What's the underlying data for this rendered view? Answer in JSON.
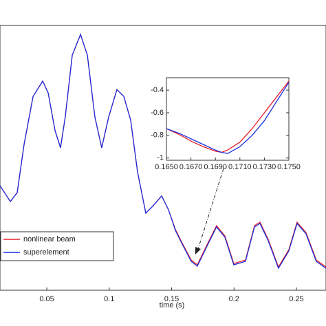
{
  "chart_data": [
    {
      "type": "line",
      "xlabel": "time (s)",
      "legend": "lower left",
      "xlim": [
        0.0125,
        0.2737
      ],
      "ylim": [
        0,
        100
      ],
      "xticks": [
        0.05,
        0.1,
        0.15,
        0.2,
        0.25
      ],
      "x": [
        0.0125,
        0.0208,
        0.0263,
        0.0318,
        0.039,
        0.0467,
        0.0511,
        0.0566,
        0.061,
        0.0648,
        0.0704,
        0.077,
        0.0825,
        0.0885,
        0.094,
        0.0996,
        0.1062,
        0.1117,
        0.1172,
        0.1227,
        0.1293,
        0.1348,
        0.142,
        0.1475,
        0.153,
        0.1585,
        0.1657,
        0.1706,
        0.1778,
        0.186,
        0.1927,
        0.1998,
        0.2092,
        0.2164,
        0.2208,
        0.2274,
        0.2356,
        0.2439,
        0.2505,
        0.2577,
        0.2659,
        0.2737
      ],
      "series": [
        {
          "name": "nonlinear beam",
          "color": "#e8202a",
          "values": [
            39.5,
            33.5,
            36.9,
            55.1,
            73.2,
            79,
            74.5,
            60.3,
            53.8,
            65.5,
            88.8,
            96.6,
            88.8,
            65.5,
            53.8,
            65.5,
            75.8,
            73.2,
            64.2,
            44.7,
            29.1,
            31.7,
            35.6,
            30.4,
            23.0,
            17.8,
            11.4,
            9.6,
            16.6,
            24.4,
            20.5,
            10.1,
            11.4,
            24.4,
            25.7,
            19.2,
            8.8,
            15.3,
            25.7,
            21.8,
            11.4,
            8.8
          ]
        },
        {
          "name": "superelement",
          "color": "#1a2ee0",
          "values": [
            39.5,
            33.5,
            36.9,
            55.1,
            73.2,
            79,
            74.5,
            60.3,
            53.8,
            65.5,
            88.8,
            96.6,
            88.8,
            65.5,
            53.8,
            65.5,
            75.8,
            73.2,
            64.2,
            44.7,
            29.1,
            31.7,
            35.6,
            30.4,
            22.6,
            17.4,
            10.9,
            9.1,
            16.1,
            23.9,
            20,
            9.6,
            10.9,
            23.9,
            25.2,
            18.7,
            8.3,
            14.8,
            25.2,
            21.3,
            10.9,
            8.3
          ]
        }
      ]
    },
    {
      "type": "line",
      "xlim": [
        0.165,
        0.175
      ],
      "ylim": [
        -1.02,
        -0.29
      ],
      "xticks": [
        {
          "value": 0.165,
          "label": "0.1650"
        },
        {
          "value": 0.167,
          "label": "0.1670"
        },
        {
          "value": 0.169,
          "label": "0.1690"
        },
        {
          "value": 0.171,
          "label": "0.1710"
        },
        {
          "value": 0.173,
          "label": "0.1730"
        },
        {
          "value": 0.175,
          "label": "0.1750"
        }
      ],
      "yticks": [
        -0.4,
        -0.6,
        -0.8,
        -1
      ],
      "x": [
        0.165,
        0.166,
        0.167,
        0.168,
        0.169,
        0.1695,
        0.17,
        0.171,
        0.172,
        0.173,
        0.174,
        0.175
      ],
      "series": [
        {
          "name": "nonlinear beam",
          "color": "#e8202a",
          "values": [
            -0.74,
            -0.79,
            -0.85,
            -0.9,
            -0.94,
            -0.95,
            -0.93,
            -0.86,
            -0.74,
            -0.6,
            -0.46,
            -0.32
          ]
        },
        {
          "name": "superelement",
          "color": "#1a2ee0",
          "values": [
            -0.74,
            -0.78,
            -0.83,
            -0.88,
            -0.93,
            -0.95,
            -0.96,
            -0.9,
            -0.8,
            -0.67,
            -0.5,
            -0.33
          ]
        }
      ]
    }
  ]
}
